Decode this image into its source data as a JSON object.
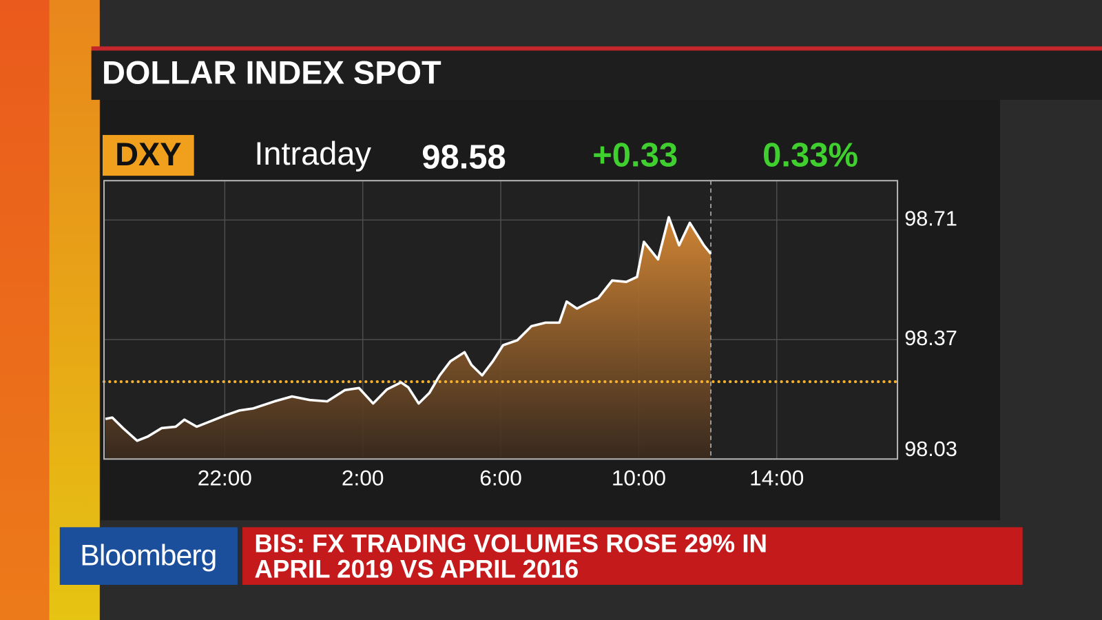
{
  "header": {
    "title": "DOLLAR INDEX SPOT"
  },
  "ticker": {
    "symbol": "DXY",
    "period": "Intraday",
    "price": "98.58",
    "change": "+0.33",
    "change_percent": "0.33%"
  },
  "banner": {
    "brand": "Bloomberg",
    "headline": [
      "BIS: FX TRADING VOLUMES ROSE 29% IN",
      "APRIL 2019 VS APRIL 2016"
    ]
  },
  "chart_data": {
    "type": "area",
    "color": "#ffffff",
    "x": [
      18.54,
      18.74,
      19.05,
      19.46,
      19.77,
      20.17,
      20.58,
      20.83,
      21.19,
      21.6,
      22.01,
      22.42,
      22.83,
      23.44,
      23.95,
      24.46,
      24.97,
      25.48,
      25.89,
      26.3,
      26.7,
      27.11,
      27.32,
      27.62,
      27.93,
      28.23,
      28.54,
      28.95,
      29.15,
      29.46,
      29.77,
      30.07,
      30.48,
      30.89,
      31.3,
      31.7,
      31.91,
      32.21,
      32.52,
      32.83,
      33.23,
      33.64,
      33.95,
      34.15,
      34.56,
      34.87,
      35.17,
      35.48,
      35.89,
      36.09
    ],
    "values": [
      98.144,
      98.148,
      98.118,
      98.082,
      98.094,
      98.118,
      98.122,
      98.142,
      98.122,
      98.138,
      98.154,
      98.168,
      98.174,
      98.194,
      98.208,
      98.198,
      98.194,
      98.226,
      98.232,
      98.188,
      98.228,
      98.248,
      98.234,
      98.188,
      98.218,
      98.268,
      98.308,
      98.334,
      98.298,
      98.268,
      98.308,
      98.354,
      98.368,
      98.408,
      98.418,
      98.418,
      98.478,
      98.458,
      98.474,
      98.488,
      98.538,
      98.534,
      98.548,
      98.648,
      98.598,
      98.718,
      98.638,
      98.702,
      98.638,
      98.614
    ],
    "reference_line": 98.25,
    "xlim": [
      18.5,
      41.5
    ],
    "xticks": [
      {
        "value": 22,
        "label": "22:00"
      },
      {
        "value": 26,
        "label": "2:00"
      },
      {
        "value": 30,
        "label": "6:00"
      },
      {
        "value": 34,
        "label": "10:00"
      },
      {
        "value": 38,
        "label": "14:00"
      }
    ],
    "ylim": [
      98.03,
      98.822
    ],
    "yticks": [
      98.03,
      98.37,
      98.71
    ],
    "grid": true
  }
}
